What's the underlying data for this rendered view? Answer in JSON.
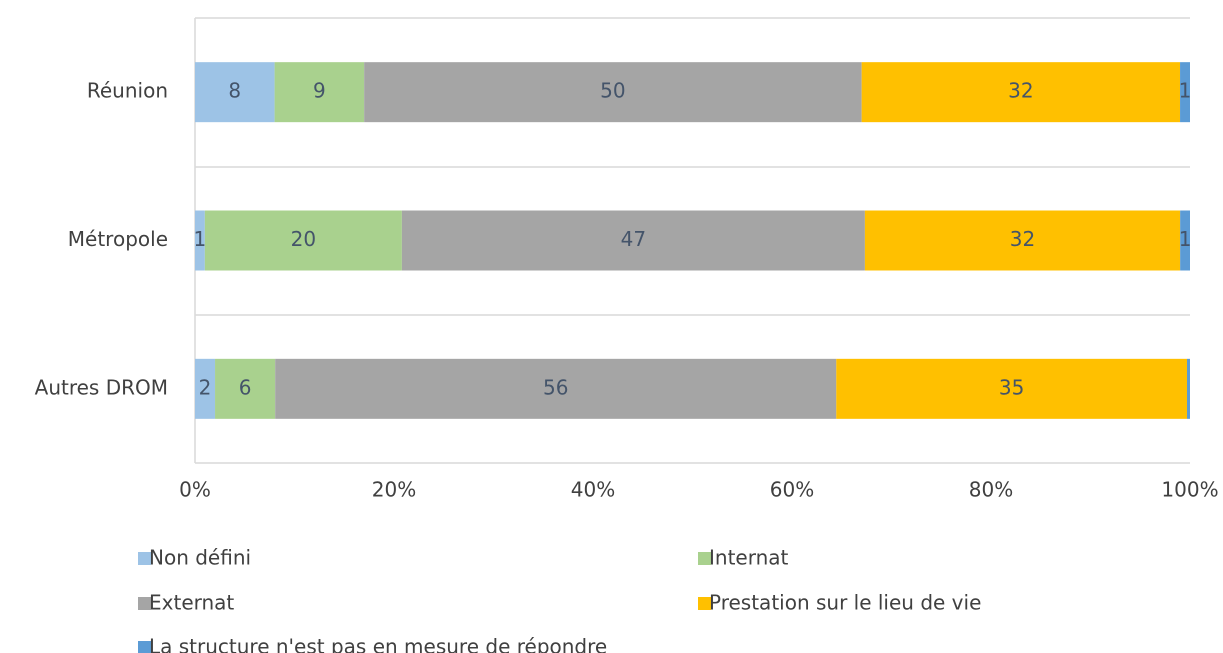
{
  "chart_data": {
    "type": "stacked-bar-100",
    "categories": [
      "Réunion",
      "Métropole",
      "Autres DROM"
    ],
    "series": [
      {
        "name": "Non défini",
        "color": "#9dc3e6",
        "values": [
          8,
          1,
          2
        ]
      },
      {
        "name": "Internat",
        "color": "#a9d18e",
        "values": [
          9,
          20,
          6
        ]
      },
      {
        "name": "Externat",
        "color": "#a5a5a5",
        "values": [
          50,
          47,
          56
        ]
      },
      {
        "name": "Prestation sur le lieu de vie",
        "color": "#ffc000",
        "values": [
          32,
          32,
          35
        ]
      },
      {
        "name": "La structure n'est pas en mesure de répondre",
        "color": "#5b9bd5",
        "values": [
          1,
          1,
          0.3
        ],
        "value_labels": [
          "1",
          "1",
          null
        ]
      }
    ],
    "xlim": [
      0,
      100
    ],
    "xticks": [
      {
        "value": 0,
        "label": "0%"
      },
      {
        "value": 20,
        "label": "20%"
      },
      {
        "value": 40,
        "label": "40%"
      },
      {
        "value": 60,
        "label": "60%"
      },
      {
        "value": 80,
        "label": "80%"
      },
      {
        "value": 100,
        "label": "100%"
      }
    ],
    "legend": "bottom"
  }
}
